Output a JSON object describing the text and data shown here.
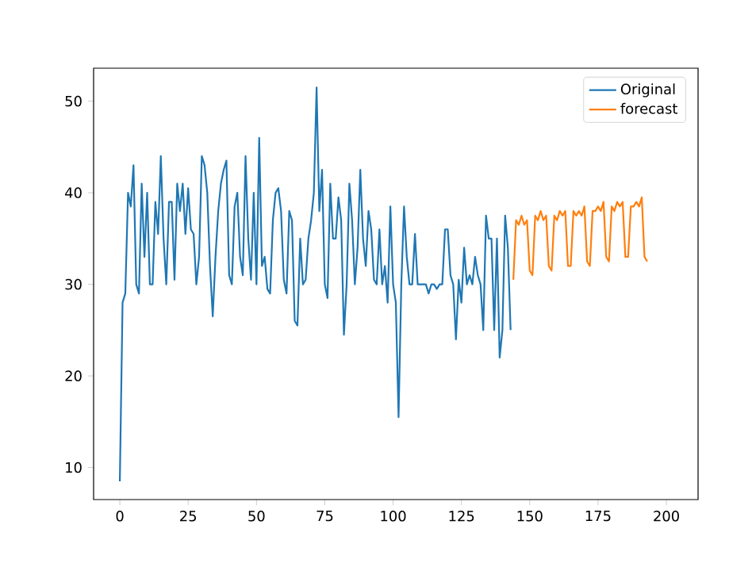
{
  "chart_data": {
    "type": "line",
    "xlim": [
      -9.6,
      211.6
    ],
    "ylim": [
      6.5,
      53.6
    ],
    "xticks": [
      0,
      25,
      50,
      75,
      100,
      125,
      150,
      175,
      200
    ],
    "yticks": [
      10,
      20,
      30,
      40,
      50
    ],
    "legend": "top right",
    "grid": false,
    "series": [
      {
        "name": "Original",
        "color": "#1f77b4",
        "x": [
          0,
          1,
          2,
          3,
          4,
          5,
          6,
          7,
          8,
          9,
          10,
          11,
          12,
          13,
          14,
          15,
          16,
          17,
          18,
          19,
          20,
          21,
          22,
          23,
          24,
          25,
          26,
          27,
          28,
          29,
          30,
          31,
          32,
          33,
          34,
          35,
          36,
          37,
          38,
          39,
          40,
          41,
          42,
          43,
          44,
          45,
          46,
          47,
          48,
          49,
          50,
          51,
          52,
          53,
          54,
          55,
          56,
          57,
          58,
          59,
          60,
          61,
          62,
          63,
          64,
          65,
          66,
          67,
          68,
          69,
          70,
          71,
          72,
          73,
          74,
          75,
          76,
          77,
          78,
          79,
          80,
          81,
          82,
          83,
          84,
          85,
          86,
          87,
          88,
          89,
          90,
          91,
          92,
          93,
          94,
          95,
          96,
          97,
          98,
          99,
          100,
          101,
          102,
          103,
          104,
          105,
          106,
          107,
          108,
          109,
          110,
          111,
          112,
          113,
          114,
          115,
          116,
          117,
          118,
          119,
          120,
          121,
          122,
          123,
          124,
          125,
          126,
          127,
          128,
          129,
          130,
          131,
          132,
          133,
          134,
          135,
          136,
          137,
          138,
          139,
          140,
          141,
          142,
          143
        ],
        "values": [
          8.5,
          28,
          29,
          40,
          38.5,
          43,
          30,
          29,
          41,
          33,
          40,
          30,
          30,
          39,
          35.5,
          44,
          35,
          30,
          39,
          39,
          30.5,
          41,
          38,
          41,
          35.5,
          40.5,
          36,
          35.5,
          30,
          33,
          44,
          43,
          40,
          32,
          26.5,
          33,
          38,
          41,
          42.5,
          43.5,
          31,
          30,
          38.5,
          40,
          33,
          31,
          44,
          35,
          30.5,
          40,
          30,
          46,
          32,
          33,
          29.5,
          29,
          37,
          40,
          40.5,
          38,
          30.5,
          29,
          38,
          37,
          26,
          25.5,
          35,
          30,
          30.5,
          35,
          37,
          40,
          51.5,
          38,
          42.5,
          30,
          28.5,
          41,
          35,
          35,
          39.5,
          37,
          24.5,
          30,
          41,
          37,
          30,
          34,
          42.5,
          35,
          32,
          38,
          36,
          30.5,
          30,
          36,
          30,
          32,
          28,
          38.5,
          30,
          28,
          15.5,
          30,
          38.5,
          33,
          30,
          30,
          35.5,
          30,
          30,
          30,
          30,
          29,
          30,
          30,
          29.5,
          30,
          30,
          36,
          36,
          31,
          30,
          24,
          30.5,
          28,
          34,
          30,
          31,
          30,
          33,
          31,
          30,
          25,
          37.5,
          35,
          35,
          25,
          35,
          22,
          25,
          37.5,
          34,
          25
        ]
      },
      {
        "name": "forecast",
        "color": "#ff7f0e",
        "x": [
          144,
          145,
          146,
          147,
          148,
          149,
          150,
          151,
          152,
          153,
          154,
          155,
          156,
          157,
          158,
          159,
          160,
          161,
          162,
          163,
          164,
          165,
          166,
          167,
          168,
          169,
          170,
          171,
          172,
          173,
          174,
          175,
          176,
          177,
          178,
          179,
          180,
          181,
          182,
          183,
          184,
          185,
          186,
          187,
          188,
          189,
          190,
          191,
          192,
          193
        ],
        "values": [
          30.5,
          37,
          36.5,
          37.5,
          36.5,
          37,
          31.5,
          31,
          37.5,
          37,
          38,
          37,
          37.5,
          32,
          31.5,
          37.5,
          37,
          38,
          37.5,
          38,
          32,
          32,
          38,
          37.5,
          38,
          37.5,
          38.5,
          32.5,
          32,
          38,
          38,
          38.5,
          38,
          39,
          33,
          32.5,
          38.5,
          38,
          39,
          38.5,
          39,
          33,
          33,
          38.5,
          38.5,
          39,
          38.5,
          39.5,
          33,
          32.5
        ]
      }
    ]
  }
}
